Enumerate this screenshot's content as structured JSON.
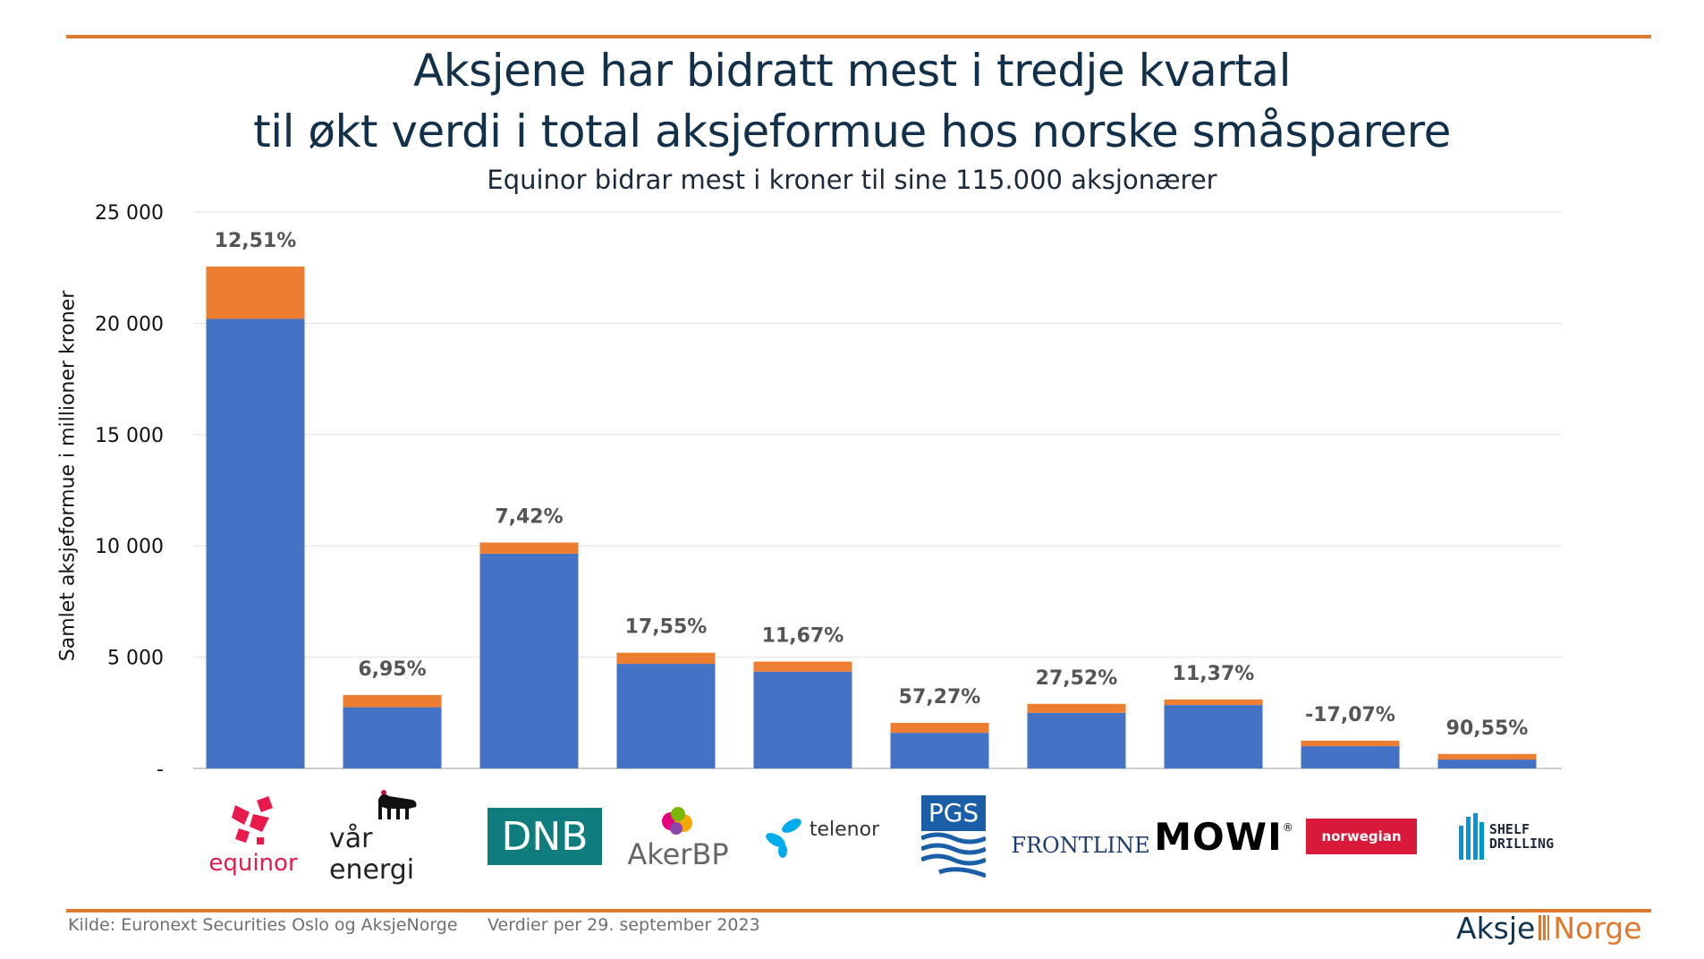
{
  "header": {
    "title_line1": "Aksjene har bidratt mest i tredje kvartal",
    "title_line2": "til økt verdi i total aksjeformue hos norske småsparere",
    "subtitle": "Equinor bidrar mest i kroner til sine 115.000 aksjonærer"
  },
  "colors": {
    "base": "#4472c4",
    "increase": "#ed7d31",
    "accent_rule": "#e0782e"
  },
  "chart_data": {
    "type": "bar",
    "stacked": true,
    "title": "Aksjene har bidratt mest i tredje kvartal til økt verdi i total aksjeformue hos norske småsparere",
    "subtitle": "Equinor bidrar mest i kroner til sine 115.000 aksjonærer",
    "xlabel": "",
    "ylabel": "Samlet aksjeformue i millioner kroner",
    "ylim": [
      0,
      25000
    ],
    "yticks": [
      0,
      5000,
      10000,
      15000,
      20000,
      25000
    ],
    "ytick_labels": [
      "-",
      "5 000",
      "10 000",
      "15 000",
      "20 000",
      "25 000"
    ],
    "grid": true,
    "legend": "none",
    "categories": [
      "Equinor",
      "Vår Energi",
      "DNB",
      "AkerBP",
      "Telenor",
      "PGS",
      "Frontline",
      "Mowi",
      "Norwegian",
      "Shelf Drilling"
    ],
    "series": [
      {
        "values": [
          20200,
          2750,
          9650,
          4700,
          4350,
          1600,
          2500,
          2850,
          1000,
          400
        ]
      },
      {
        "values": [
          2350,
          550,
          500,
          500,
          450,
          450,
          400,
          250,
          250,
          250
        ]
      }
    ],
    "data_labels": [
      "12,51%",
      "6,95%",
      "7,42%",
      "17,55%",
      "11,67%",
      "57,27%",
      "27,52%",
      "11,37%",
      "-17,07%",
      "90,55%"
    ]
  },
  "logos": {
    "equinor": {
      "icon": "equinor-star-icon",
      "text": "equinor"
    },
    "varenergi": {
      "icon": "six-legged-dog-icon",
      "text": "vår energi"
    },
    "dnb": {
      "text": "DNB"
    },
    "akerbp": {
      "icon": "akerbp-mark-icon",
      "text": "AkerBP"
    },
    "telenor": {
      "icon": "telenor-propeller-icon",
      "text": "telenor"
    },
    "pgs": {
      "icon": "pgs-waves-icon",
      "text": "PGS"
    },
    "frontline": {
      "text": "FRONTLINE"
    },
    "mowi": {
      "text": "MOWI",
      "mark": "®"
    },
    "norwegian": {
      "text": "norwegian"
    },
    "shelf": {
      "icon": "shelf-bars-icon",
      "line1": "SHELF",
      "line2": "DRILLING"
    }
  },
  "footer": {
    "source": "Kilde: Euronext Securities Oslo og AksjeNorge",
    "date_note": "Verdier per 29. september 2023",
    "brand_part1": "Aksje",
    "brand_part2": "Norge"
  }
}
